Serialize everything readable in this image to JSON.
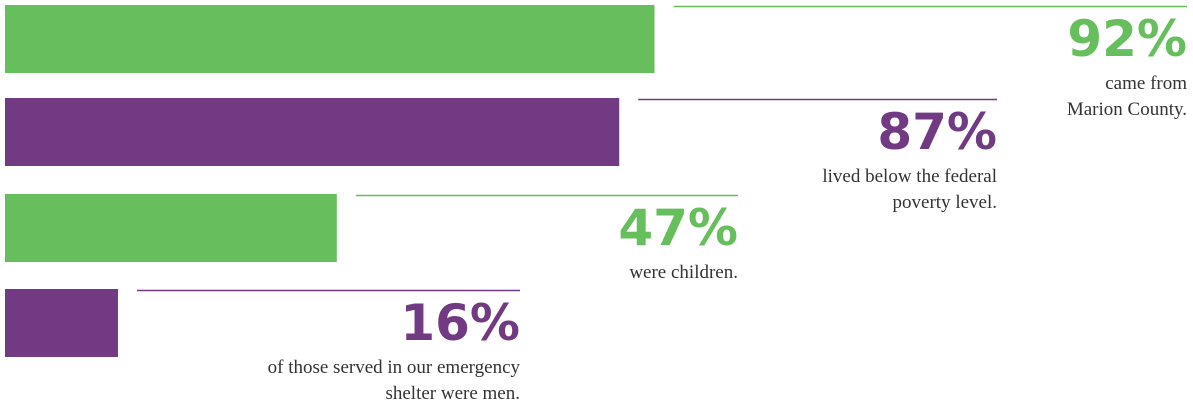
{
  "chart_data": {
    "type": "bar",
    "orientation": "horizontal",
    "values": [
      92,
      87,
      47,
      16
    ],
    "value_labels": [
      "92%",
      "87%",
      "47%",
      "16%"
    ],
    "labels": [
      [
        "came from",
        "Marion County."
      ],
      [
        "lived below the federal",
        "poverty level."
      ],
      [
        "were children."
      ],
      [
        "of those served in our emergency",
        "shelter were men."
      ]
    ],
    "colors": [
      "#66bf5c",
      "#713a82",
      "#66bf5c",
      "#713a82"
    ],
    "xlim": [
      0,
      100
    ]
  }
}
